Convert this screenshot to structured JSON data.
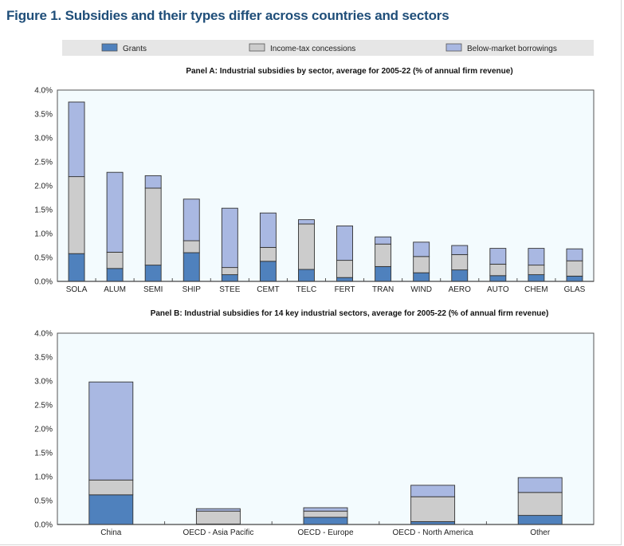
{
  "title": "Figure 1. Subsidies and their types differ across countries and sectors",
  "legend": [
    {
      "name": "Grants",
      "color": "#4f81bd"
    },
    {
      "name": "Income-tax concessions",
      "color": "#cccccc"
    },
    {
      "name": "Below-market borrowings",
      "color": "#a9b8e2"
    }
  ],
  "chart_data": [
    {
      "type": "bar",
      "stacked": true,
      "title": "Panel A: Industrial subsidies by sector, average for 2005-22 (% of annual firm revenue)",
      "categories": [
        "SOLA",
        "ALUM",
        "SEMI",
        "SHIP",
        "STEE",
        "CEMT",
        "TELC",
        "FERT",
        "TRAN",
        "WIND",
        "AERO",
        "AUTO",
        "CHEM",
        "GLAS"
      ],
      "series": [
        {
          "name": "Grants",
          "values": [
            0.58,
            0.27,
            0.34,
            0.6,
            0.14,
            0.42,
            0.25,
            0.08,
            0.31,
            0.18,
            0.24,
            0.12,
            0.14,
            0.11
          ]
        },
        {
          "name": "Income-tax concessions",
          "values": [
            1.61,
            0.34,
            1.61,
            0.25,
            0.15,
            0.29,
            0.95,
            0.36,
            0.47,
            0.34,
            0.32,
            0.24,
            0.2,
            0.32
          ]
        },
        {
          "name": "Below-market borrowings",
          "values": [
            1.56,
            1.67,
            0.26,
            0.87,
            1.24,
            0.72,
            0.09,
            0.72,
            0.15,
            0.3,
            0.19,
            0.33,
            0.35,
            0.25
          ]
        }
      ],
      "ylim": [
        0,
        4
      ],
      "yticks": [
        "0.0%",
        "0.5%",
        "1.0%",
        "1.5%",
        "2.0%",
        "2.5%",
        "3.0%",
        "3.5%",
        "4.0%"
      ],
      "grid": false,
      "legend_position": "top"
    },
    {
      "type": "bar",
      "stacked": true,
      "title": "Panel B: Industrial subsidies for 14 key industrial sectors, average for 2005-22 (% of annual firm revenue)",
      "categories": [
        "China",
        "OECD - Asia Pacific",
        "OECD - Europe",
        "OECD - North America",
        "Other"
      ],
      "series": [
        {
          "name": "Grants",
          "values": [
            0.62,
            0.01,
            0.15,
            0.06,
            0.19
          ]
        },
        {
          "name": "Income-tax concessions",
          "values": [
            0.31,
            0.27,
            0.13,
            0.52,
            0.48
          ]
        },
        {
          "name": "Below-market borrowings",
          "values": [
            2.05,
            0.05,
            0.07,
            0.24,
            0.31
          ]
        }
      ],
      "ylim": [
        0,
        4
      ],
      "yticks": [
        "0.0%",
        "0.5%",
        "1.0%",
        "1.5%",
        "2.0%",
        "2.5%",
        "3.0%",
        "3.5%",
        "4.0%"
      ],
      "grid": false
    }
  ]
}
